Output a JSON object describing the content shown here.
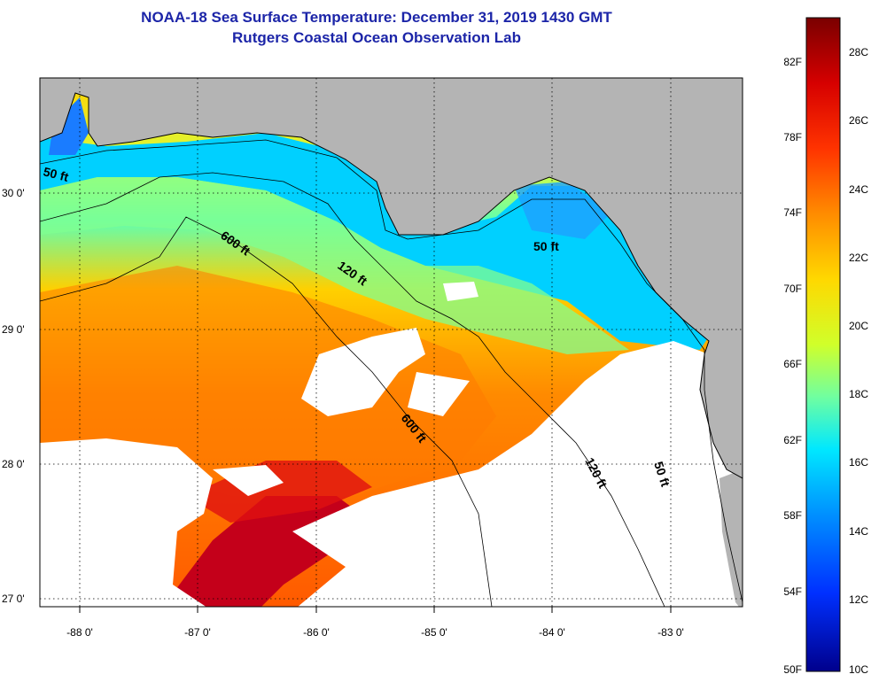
{
  "title": {
    "line1": "NOAA-18 Sea Surface Temperature:  December 31, 2019 1430 GMT",
    "line2": "Rutgers Coastal Ocean Observation Lab"
  },
  "map": {
    "lon_labels": [
      "-88 0'",
      "-87 0'",
      "-86 0'",
      "-85 0'",
      "-84 0'",
      "-83 0'"
    ],
    "lat_labels": [
      "30 0'",
      "29 0'",
      "28 0'",
      "27 0'"
    ],
    "contour_labels": [
      "50 ft",
      "600 ft",
      "120 ft",
      "50 ft",
      "600 ft",
      "120 ft",
      "50 ft"
    ],
    "colors": {
      "land": "#b4b4b4",
      "cloud": "#ffffff",
      "frame": "#000000"
    }
  },
  "colorbar": {
    "fahrenheit": [
      "82F",
      "78F",
      "74F",
      "70F",
      "66F",
      "62F",
      "58F",
      "54F",
      "50F"
    ],
    "celsius": [
      "28C",
      "26C",
      "24C",
      "22C",
      "20C",
      "18C",
      "16C",
      "14C",
      "12C",
      "10C"
    ],
    "colors": [
      "#7a0000",
      "#d60000",
      "#ff3300",
      "#ff8c00",
      "#ffd800",
      "#d0ff2a",
      "#70ffa0",
      "#00e8ff",
      "#0090ff",
      "#0030ff",
      "#00008c"
    ]
  }
}
